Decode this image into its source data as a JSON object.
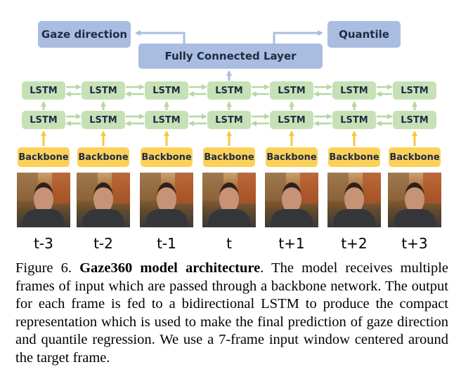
{
  "top": {
    "gaze_label": "Gaze direction",
    "quantile_label": "Quantile",
    "fc_label": "Fully Connected Layer"
  },
  "lstm_label": "LSTM",
  "backbone_label": "Backbone",
  "frames": [
    "t-3",
    "t-2",
    "t-1",
    "t",
    "t+1",
    "t+2",
    "t+3"
  ],
  "colors": {
    "blue_box": "#a9bde0",
    "lstm_box": "#c7e1b6",
    "backbone_box": "#fcd15a",
    "blue_arrow": "#a9bde0",
    "green_arrow": "#b5d8a1",
    "yellow_arrow": "#fbc83b"
  },
  "caption": {
    "prefix": "Figure 6. ",
    "title": "Gaze360 model architecture",
    "body": ". The model receives multiple frames of input which are passed through a backbone network. The output for each frame is fed to a bidirectional LSTM to produce the compact representation which is used to make the final prediction of gaze direction and quantile regression. We use a 7-frame input window centered around the target frame."
  }
}
